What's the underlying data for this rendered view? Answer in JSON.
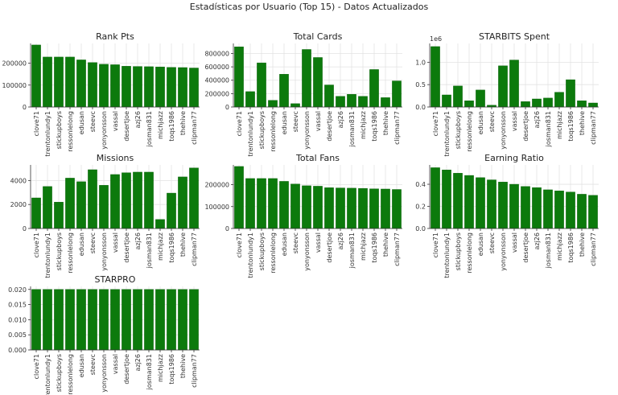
{
  "figure": {
    "title": "Estadísticas por Usuario (Top 15) - Datos Actualizados",
    "bar_color": "#0c7a0c",
    "grid": true
  },
  "chart_data": [
    {
      "type": "bar",
      "title": "Rank Pts",
      "categories": [
        "clove71",
        "trentonlundy1",
        "stickupboys",
        "ressonlelong",
        "edusan",
        "steevc",
        "yonyonsson",
        "vassal",
        "desertjoe",
        "azj26",
        "josman831",
        "michjazz",
        "toqs1986",
        "thehive",
        "clipman77"
      ],
      "values": [
        283000,
        228000,
        228000,
        228000,
        215000,
        203000,
        195000,
        193000,
        186000,
        185000,
        184000,
        183000,
        181000,
        180000,
        178000
      ],
      "ylim": [
        0,
        290000
      ],
      "yticks": [
        0,
        100000,
        200000
      ],
      "ytick_labels": [
        "0",
        "100000",
        "200000"
      ]
    },
    {
      "type": "bar",
      "title": "Total Cards",
      "categories": [
        "clove71",
        "trentonlundy1",
        "stickupboys",
        "ressonlelong",
        "edusan",
        "steevc",
        "yonyonsson",
        "vassal",
        "desertjoe",
        "azj26",
        "josman831",
        "michjazz",
        "toqs1986",
        "thehive",
        "clipman77"
      ],
      "values": [
        900000,
        230000,
        660000,
        100000,
        490000,
        50000,
        860000,
        740000,
        330000,
        160000,
        190000,
        160000,
        560000,
        140000,
        390000
      ],
      "ylim": [
        0,
        950000
      ],
      "yticks": [
        0,
        200000,
        400000,
        600000,
        800000
      ],
      "ytick_labels": [
        "0",
        "200000",
        "400000",
        "600000",
        "800000"
      ]
    },
    {
      "type": "bar",
      "title": "STARBITS Spent",
      "categories": [
        "clove71",
        "trentonlundy1",
        "stickupboys",
        "ressonlelong",
        "edusan",
        "steevc",
        "yonyonsson",
        "vassal",
        "desertjoe",
        "azj26",
        "josman831",
        "michjazz",
        "toqs1986",
        "thehive",
        "clipman77"
      ],
      "values": [
        1350000,
        270000,
        470000,
        140000,
        380000,
        40000,
        920000,
        1050000,
        120000,
        180000,
        200000,
        330000,
        610000,
        140000,
        90000
      ],
      "ylim": [
        0,
        1420000
      ],
      "yticks": [
        0,
        500000,
        1000000
      ],
      "ytick_labels": [
        "0.0",
        "0.5",
        "1.0"
      ],
      "offset_label": "1e6"
    },
    {
      "type": "bar",
      "title": "Missions",
      "categories": [
        "clove71",
        "trentonlundy1",
        "stickupboys",
        "ressonlelong",
        "edusan",
        "steevc",
        "yonyonsson",
        "vassal",
        "desertjoe",
        "azj26",
        "josman831",
        "michjazz",
        "toqs1986",
        "thehive",
        "clipman77"
      ],
      "values": [
        2550,
        3500,
        2200,
        4200,
        3900,
        4900,
        3600,
        4500,
        4650,
        4700,
        4700,
        750,
        2950,
        4300,
        5050
      ],
      "ylim": [
        0,
        5300
      ],
      "yticks": [
        0,
        2000,
        4000
      ],
      "ytick_labels": [
        "0",
        "2000",
        "4000"
      ]
    },
    {
      "type": "bar",
      "title": "Total Fans",
      "categories": [
        "clove71",
        "trentonlundy1",
        "stickupboys",
        "ressonlelong",
        "edusan",
        "steevc",
        "yonyonsson",
        "vassal",
        "desertjoe",
        "azj26",
        "josman831",
        "michjazz",
        "toqs1986",
        "thehive",
        "clipman77"
      ],
      "values": [
        283000,
        228000,
        228000,
        228000,
        215000,
        203000,
        195000,
        193000,
        186000,
        185000,
        184000,
        183000,
        181000,
        180000,
        178000
      ],
      "ylim": [
        0,
        290000
      ],
      "yticks": [
        0,
        100000,
        200000
      ],
      "ytick_labels": [
        "0",
        "100000",
        "200000"
      ]
    },
    {
      "type": "bar",
      "title": "Earning Ratio",
      "categories": [
        "clove71",
        "trentonlundy1",
        "stickupboys",
        "ressonlelong",
        "edusan",
        "steevc",
        "yonyonsson",
        "vassal",
        "desertjoe",
        "azj26",
        "josman831",
        "michjazz",
        "toqs1986",
        "thehive",
        "clipman77"
      ],
      "values": [
        0.55,
        0.53,
        0.5,
        0.48,
        0.46,
        0.44,
        0.42,
        0.4,
        0.38,
        0.37,
        0.35,
        0.34,
        0.33,
        0.31,
        0.3
      ],
      "ylim": [
        0,
        0.575
      ],
      "yticks": [
        0,
        0.2,
        0.4
      ],
      "ytick_labels": [
        "0.0",
        "0.2",
        "0.4"
      ]
    },
    {
      "type": "bar",
      "title": "STARPRO",
      "categories": [
        "clove71",
        "trentonlundy1",
        "stickupboys",
        "ressonlelong",
        "edusan",
        "steevc",
        "yonyonsson",
        "vassal",
        "desertjoe",
        "azj26",
        "josman831",
        "michjazz",
        "toqs1986",
        "thehive",
        "clipman77"
      ],
      "values": [
        0.02,
        0.02,
        0.02,
        0.02,
        0.02,
        0.02,
        0.02,
        0.02,
        0.02,
        0.02,
        0.02,
        0.02,
        0.02,
        0.02,
        0.02
      ],
      "ylim": [
        0,
        0.021
      ],
      "yticks": [
        0,
        0.005,
        0.01,
        0.015,
        0.02
      ],
      "ytick_labels": [
        "0.000",
        "0.005",
        "0.010",
        "0.015",
        "0.020"
      ]
    }
  ]
}
